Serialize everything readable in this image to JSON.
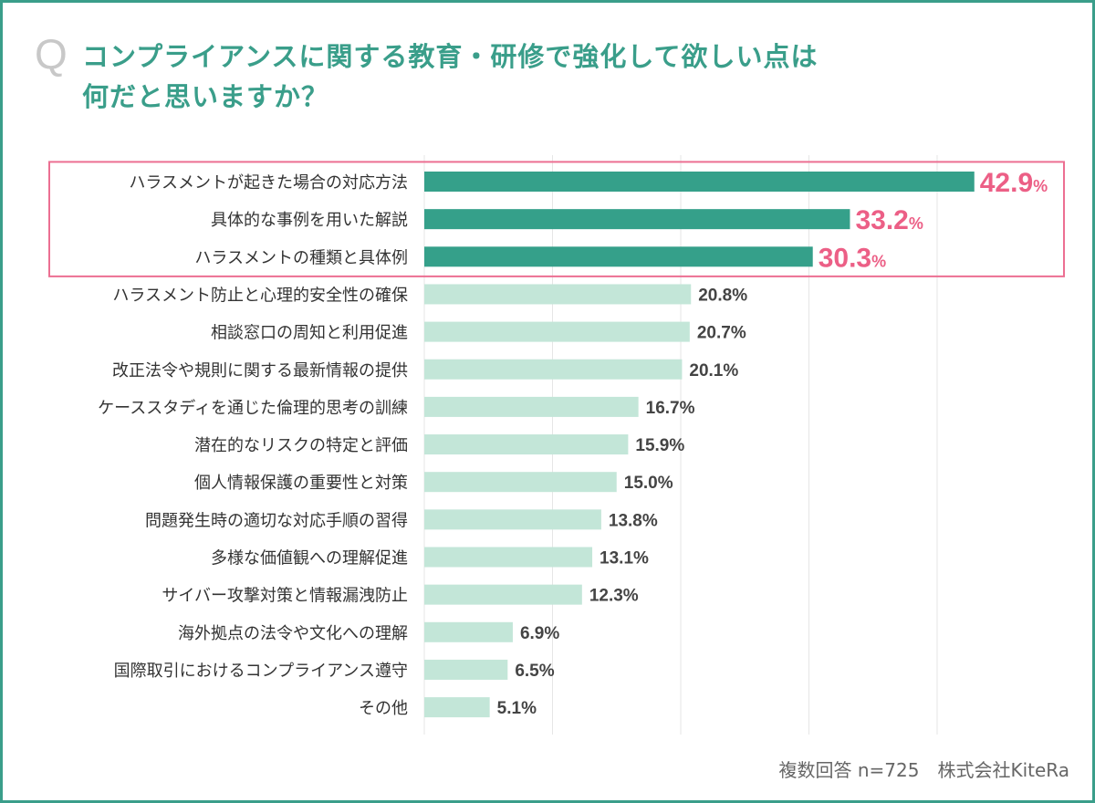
{
  "question_mark": "Q",
  "title_line1": "コンプライアンスに関する教育・研修で強化して欲しい点は",
  "title_line2": "何だと思いますか？",
  "footer": "複数回答 n=725　株式会社KiteRa",
  "colors": {
    "border": "#3a9e8a",
    "highlight_bar": "#35a08a",
    "normal_bar": "#c3e6d8",
    "highlight_text": "#ec5f86",
    "highlight_box": "#ec6f92",
    "normal_text": "#444444",
    "grid": "#e6e6e6"
  },
  "chart_data": {
    "type": "bar",
    "orientation": "horizontal",
    "xlim": [
      0,
      50
    ],
    "gridlines": [
      10,
      20,
      30,
      40
    ],
    "unit": "%",
    "highlighted_count": 3,
    "categories": [
      "ハラスメントが起きた場合の対応方法",
      "具体的な事例を用いた解説",
      "ハラスメントの種類と具体例",
      "ハラスメント防止と心理的安全性の確保",
      "相談窓口の周知と利用促進",
      "改正法令や規則に関する最新情報の提供",
      "ケーススタディを通じた倫理的思考の訓練",
      "潜在的なリスクの特定と評価",
      "個人情報保護の重要性と対策",
      "問題発生時の適切な対応手順の習得",
      "多様な価値観への理解促進",
      "サイバー攻撃対策と情報漏洩防止",
      "海外拠点の法令や文化への理解",
      "国際取引におけるコンプライアンス遵守",
      "その他"
    ],
    "values": [
      42.9,
      33.2,
      30.3,
      20.8,
      20.7,
      20.1,
      16.7,
      15.9,
      15.0,
      13.8,
      13.1,
      12.3,
      6.9,
      6.5,
      5.1
    ],
    "value_labels": [
      "42.9",
      "33.2",
      "30.3",
      "20.8",
      "20.7",
      "20.1",
      "16.7",
      "15.9",
      "15.0",
      "13.8",
      "13.1",
      "12.3",
      "6.9",
      "6.5",
      "5.1"
    ]
  }
}
